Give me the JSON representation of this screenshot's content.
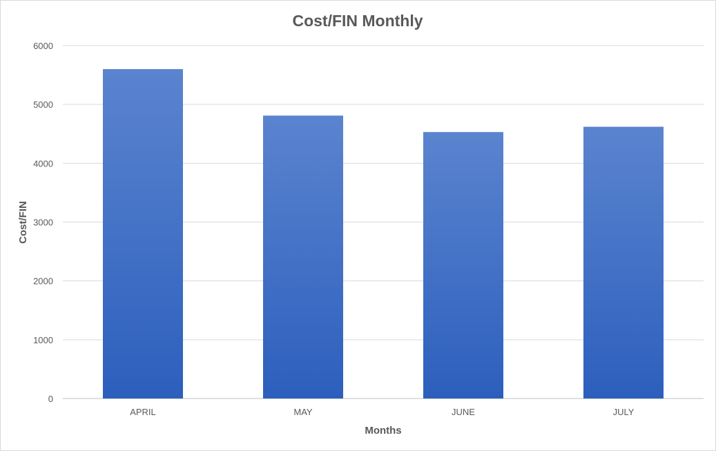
{
  "chart_data": {
    "type": "bar",
    "title": "Cost/FIN Monthly",
    "xlabel": "Months",
    "ylabel": "Cost/FIN",
    "categories": [
      "APRIL",
      "MAY",
      "JUNE",
      "JULY"
    ],
    "values": [
      5600,
      4810,
      4530,
      4620
    ],
    "ylim": [
      0,
      6000
    ],
    "yticks": [
      0,
      1000,
      2000,
      3000,
      4000,
      5000,
      6000
    ],
    "grid": true,
    "legend": "none",
    "colors": {
      "bar_top": "#5b84cf",
      "bar_bottom": "#2c5fbd"
    }
  }
}
